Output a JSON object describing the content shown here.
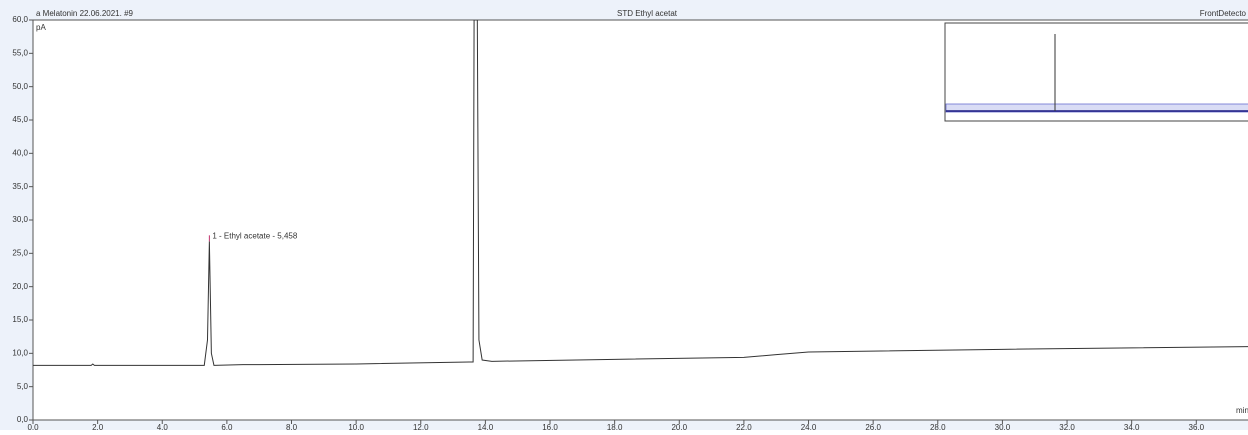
{
  "chart_data": {
    "type": "line",
    "header_left": "a Melatonin 22.06.2021. #9",
    "title": "STD Ethyl acetat",
    "header_right": "FrontDetecto",
    "ylabel": "pA",
    "xlabel": "min",
    "annotation": "1 - Ethyl acetate - 5,458",
    "annotation_x": 5.458,
    "annotation_y": 26.8,
    "x": [
      0,
      1.8,
      1.85,
      1.9,
      5.3,
      5.4,
      5.458,
      5.52,
      5.6,
      6.5,
      7.0,
      10,
      13.5,
      13.62,
      13.65,
      13.75,
      13.8,
      13.9,
      14.2,
      18,
      22,
      23,
      24,
      30,
      37.6
    ],
    "series": [
      {
        "color": "#333333",
        "values": [
          8.2,
          8.2,
          8.4,
          8.2,
          8.2,
          12,
          26.8,
          10,
          8.2,
          8.3,
          8.3,
          8.4,
          8.7,
          8.7,
          60,
          60,
          12,
          9.0,
          8.8,
          9.1,
          9.4,
          9.8,
          10.2,
          10.6,
          11.0
        ]
      }
    ],
    "xlim": [
      0,
      37.6
    ],
    "ylim": [
      0,
      60
    ],
    "xticks": [
      {
        "value": 0,
        "label": "0,0"
      },
      {
        "value": 2,
        "label": "2,0"
      },
      {
        "value": 4,
        "label": "4,0"
      },
      {
        "value": 6,
        "label": "6,0"
      },
      {
        "value": 8,
        "label": "8,0"
      },
      {
        "value": 10,
        "label": "10,0"
      },
      {
        "value": 12,
        "label": "12,0"
      },
      {
        "value": 14,
        "label": "14,0"
      },
      {
        "value": 16,
        "label": "16,0"
      },
      {
        "value": 18,
        "label": "18,0"
      },
      {
        "value": 20,
        "label": "20,0"
      },
      {
        "value": 22,
        "label": "22,0"
      },
      {
        "value": 24,
        "label": "24,0"
      },
      {
        "value": 26,
        "label": "26,0"
      },
      {
        "value": 28,
        "label": "28,0"
      },
      {
        "value": 30,
        "label": "30,0"
      },
      {
        "value": 32,
        "label": "32,0"
      },
      {
        "value": 34,
        "label": "34,0"
      },
      {
        "value": 36,
        "label": "36,0"
      }
    ],
    "yticks": [
      {
        "value": 0,
        "label": "0,0"
      },
      {
        "value": 5,
        "label": "5,0"
      },
      {
        "value": 10,
        "label": "10,0"
      },
      {
        "value": 15,
        "label": "15,0"
      },
      {
        "value": 20,
        "label": "20,0"
      },
      {
        "value": 25,
        "label": "25,0"
      },
      {
        "value": 30,
        "label": "30,0"
      },
      {
        "value": 35,
        "label": "35,0"
      },
      {
        "value": 40,
        "label": "40,0"
      },
      {
        "value": 45,
        "label": "45,0"
      },
      {
        "value": 50,
        "label": "50,0"
      },
      {
        "value": 55,
        "label": "55,0"
      },
      {
        "value": 60,
        "label": "60,0"
      }
    ]
  }
}
